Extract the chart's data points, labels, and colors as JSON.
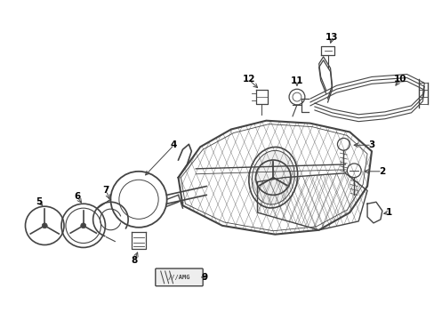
{
  "bg_color": "#ffffff",
  "line_color": "#444444",
  "label_color": "#000000",
  "figsize": [
    4.89,
    3.6
  ],
  "dpi": 100
}
